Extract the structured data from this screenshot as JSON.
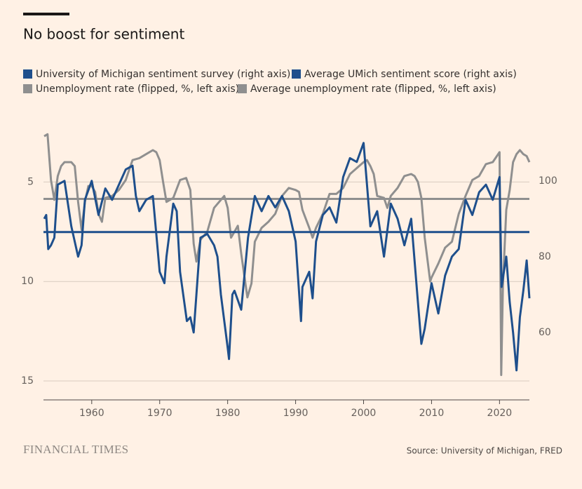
{
  "chart_data": {
    "type": "line",
    "title": "No boost for sentiment",
    "brand": "FINANCIAL TIMES",
    "source": "Source: University of Michigan, FRED",
    "xlim": [
      1952.9,
      2024.4
    ],
    "xticks": [
      1960,
      1970,
      1980,
      1990,
      2000,
      2010,
      2020
    ],
    "ylim": [
      15.95,
      2.2
    ],
    "yticks": [
      5,
      10,
      15
    ],
    "y2lim": [
      42.2,
      114.4
    ],
    "y2ticks": [
      60,
      80,
      100
    ],
    "grid": true,
    "series": [
      {
        "name": "University of Michigan sentiment survey (right axis)",
        "color": "#1e4f8c",
        "axis": "y2",
        "x": [
          1953,
          1953.3,
          1953.6,
          1954,
          1954.5,
          1955,
          1956,
          1957,
          1958,
          1958.5,
          1959,
          1960,
          1961,
          1962,
          1963,
          1964,
          1965,
          1966,
          1966.5,
          1967,
          1968,
          1969,
          1969.5,
          1970,
          1970.7,
          1971,
          1972,
          1972.5,
          1973,
          1974,
          1974.5,
          1975,
          1975.4,
          1976,
          1977,
          1978,
          1978.5,
          1979,
          1980,
          1980.2,
          1980.7,
          1981,
          1982,
          1983,
          1984,
          1985,
          1986,
          1987,
          1988,
          1989,
          1990,
          1990.8,
          1991,
          1992,
          1992.5,
          1993,
          1994,
          1995,
          1996,
          1997,
          1998,
          1999,
          2000,
          2001,
          2002,
          2003,
          2004,
          2005,
          2006,
          2007,
          2008,
          2008.5,
          2009,
          2010,
          2011,
          2012,
          2013,
          2014,
          2015,
          2016,
          2017,
          2018,
          2019,
          2020,
          2020.3,
          2021,
          2021.5,
          2022,
          2022.5,
          2023,
          2023.5,
          2024,
          2024.4
        ],
        "values": [
          90,
          91,
          82,
          83,
          85,
          99,
          100,
          88,
          80,
          83,
          95,
          100,
          91,
          98,
          95,
          99,
          103,
          104,
          96,
          92,
          95,
          96,
          86,
          76,
          73,
          80,
          94,
          92,
          76,
          63,
          64,
          60,
          70,
          85,
          86,
          83,
          80,
          70,
          56,
          53,
          70,
          71,
          66,
          85,
          96,
          92,
          96,
          93,
          96,
          92,
          84,
          63,
          72,
          76,
          69,
          84,
          91,
          93,
          89,
          101,
          106,
          105,
          110,
          88,
          92,
          80,
          94,
          90,
          83,
          90,
          68,
          57,
          61,
          73,
          65,
          75,
          80,
          82,
          95,
          91,
          97,
          99,
          95,
          101,
          72,
          80,
          68,
          60,
          50,
          64,
          71,
          79,
          69
        ]
      },
      {
        "name": "Average UMich sentiment score (right axis)",
        "color": "#1e4f8c",
        "axis": "y2",
        "value": 86.5
      },
      {
        "name": "Unemployment rate (flipped, %, left axis)",
        "color": "#8f8f8f",
        "x": [
          1953,
          1953.5,
          1954,
          1954.5,
          1955,
          1955.5,
          1956,
          1957,
          1957.5,
          1958,
          1958.5,
          1959,
          1959.5,
          1960,
          1960.5,
          1961,
          1961.5,
          1962,
          1963,
          1964,
          1965,
          1966,
          1967,
          1968,
          1969,
          1969.5,
          1970,
          1970.5,
          1971,
          1972,
          1973,
          1973.9,
          1974.5,
          1975,
          1975.4,
          1976,
          1977,
          1978,
          1979,
          1979.5,
          1980,
          1980.5,
          1981,
          1981.5,
          1982,
          1982.9,
          1983.5,
          1984,
          1985,
          1986,
          1987,
          1988,
          1989,
          1990,
          1990.5,
          1991,
          1992,
          1992.5,
          1993,
          1994,
          1995,
          1996,
          1997,
          1998,
          1999,
          2000,
          2000.5,
          2001,
          2001.5,
          2002,
          2003,
          2003.5,
          2004,
          2005,
          2006,
          2007,
          2007.5,
          2008,
          2008.5,
          2009,
          2009.8,
          2010,
          2011,
          2012,
          2013,
          2014,
          2015,
          2016,
          2017,
          2018,
          2019,
          2020,
          2020.25,
          2020.5,
          2021,
          2021.5,
          2022,
          2022.5,
          2023,
          2023.5,
          2024,
          2024.4
        ],
        "values": [
          2.7,
          2.6,
          4.9,
          5.9,
          4.7,
          4.2,
          4.0,
          4.0,
          4.2,
          6.0,
          7.4,
          6.0,
          5.2,
          5.2,
          5.5,
          6.6,
          7.0,
          5.8,
          5.7,
          5.4,
          4.9,
          3.9,
          3.8,
          3.6,
          3.4,
          3.5,
          3.9,
          5.0,
          6.0,
          5.8,
          4.9,
          4.8,
          5.4,
          8.1,
          9.0,
          7.9,
          7.5,
          6.3,
          5.9,
          5.7,
          6.3,
          7.8,
          7.5,
          7.2,
          8.6,
          10.8,
          10.1,
          8.0,
          7.3,
          7.0,
          6.6,
          5.7,
          5.3,
          5.4,
          5.5,
          6.4,
          7.3,
          7.8,
          7.3,
          6.6,
          5.6,
          5.6,
          5.3,
          4.6,
          4.3,
          4.0,
          3.9,
          4.2,
          4.6,
          5.7,
          5.8,
          6.3,
          5.7,
          5.3,
          4.7,
          4.6,
          4.7,
          5.0,
          5.8,
          7.8,
          10.0,
          9.8,
          9.1,
          8.3,
          8.0,
          6.6,
          5.7,
          4.9,
          4.7,
          4.1,
          4.0,
          3.5,
          14.7,
          10.2,
          6.4,
          5.4,
          4.0,
          3.6,
          3.4,
          3.6,
          3.7,
          4.0
        ]
      },
      {
        "name": "Average unemployment rate (flipped, %, left axis)",
        "color": "#8f8f8f",
        "value": 5.85
      }
    ]
  }
}
